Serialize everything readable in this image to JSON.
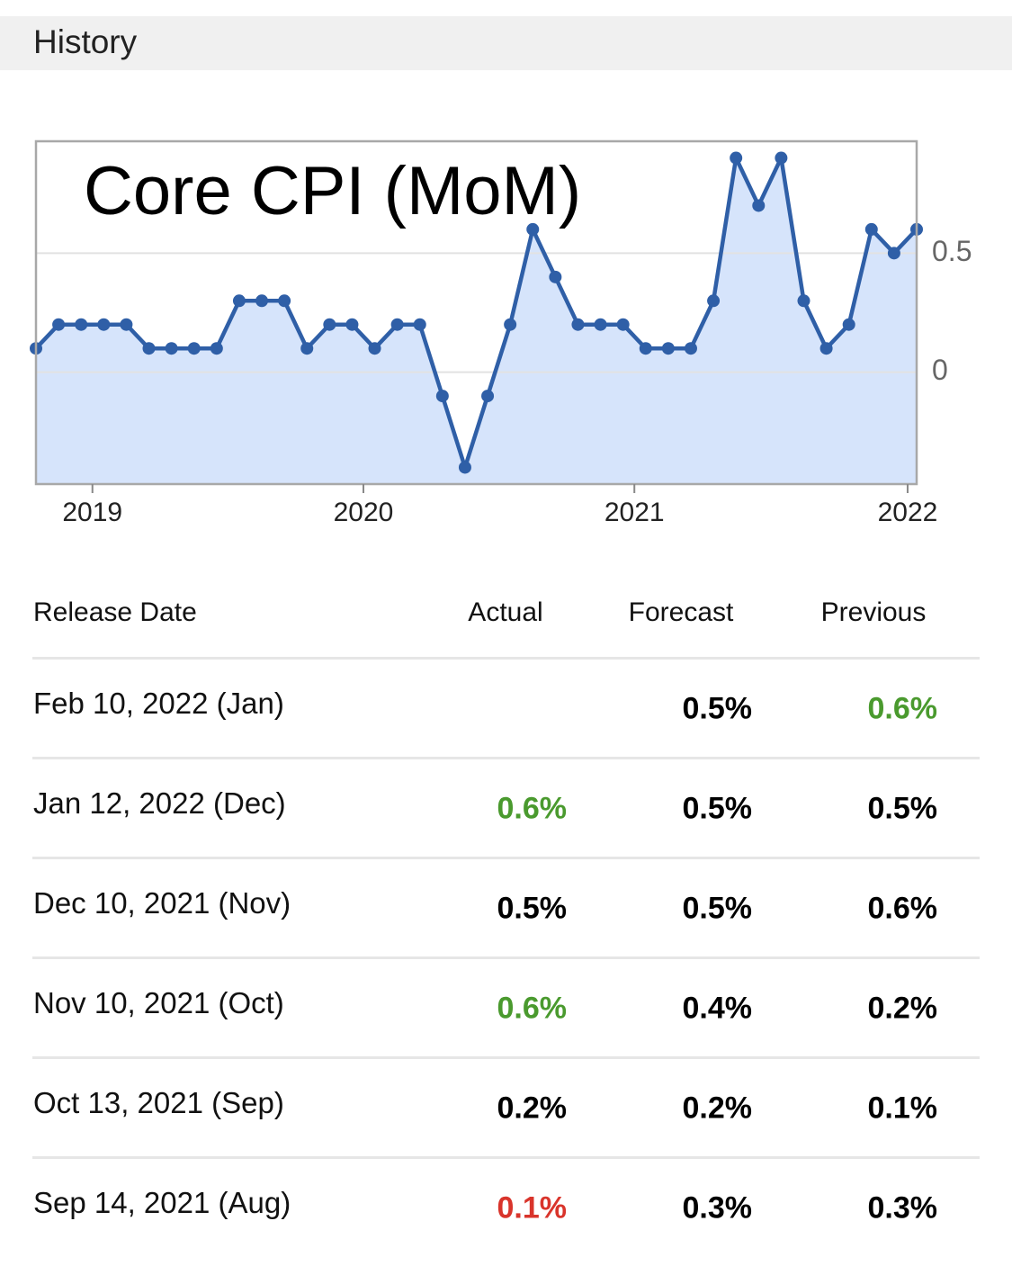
{
  "header": {
    "title": "History"
  },
  "chart_data": {
    "type": "line",
    "title": "Core CPI (MoM)",
    "values": [
      0.1,
      0.2,
      0.2,
      0.2,
      0.2,
      0.1,
      0.1,
      0.1,
      0.1,
      0.3,
      0.3,
      0.3,
      0.1,
      0.2,
      0.2,
      0.1,
      0.2,
      0.2,
      -0.1,
      -0.4,
      -0.1,
      0.2,
      0.6,
      0.4,
      0.2,
      0.2,
      0.2,
      0.1,
      0.1,
      0.1,
      0.3,
      0.9,
      0.7,
      0.9,
      0.3,
      0.1,
      0.2,
      0.6,
      0.5,
      0.6
    ],
    "color": "#2f5fa7",
    "fill": "#d6e4fb",
    "xlim": [
      0,
      39
    ],
    "xticks": [
      {
        "value": 2.5,
        "label": "2019"
      },
      {
        "value": 14.5,
        "label": "2020"
      },
      {
        "value": 26.5,
        "label": "2021"
      },
      {
        "value": 38.6,
        "label": "2022"
      }
    ],
    "ylim": [
      -0.47,
      0.97
    ],
    "yticks": [
      0,
      0.5
    ],
    "grid": true
  },
  "table": {
    "headers": [
      "Release Date",
      "Actual",
      "Forecast",
      "Previous"
    ],
    "rows": [
      [
        "Feb 10, 2022 (Jan)",
        null,
        "0.5%",
        "0.6%"
      ],
      [
        "Jan 12, 2022 (Dec)",
        "0.6%",
        "0.5%",
        "0.5%"
      ],
      [
        "Dec 10, 2021 (Nov)",
        "0.5%",
        "0.5%",
        "0.6%"
      ],
      [
        "Nov 10, 2021 (Oct)",
        "0.6%",
        "0.4%",
        "0.2%"
      ],
      [
        "Oct 13, 2021 (Sep)",
        "0.2%",
        "0.2%",
        "0.1%"
      ],
      [
        "Sep 14, 2021 (Aug)",
        "0.1%",
        "0.3%",
        "0.3%"
      ]
    ],
    "colors": [
      [
        null,
        null,
        "#000000",
        "#4a9a2e"
      ],
      [
        null,
        "#4a9a2e",
        "#000000",
        "#000000"
      ],
      [
        null,
        "#000000",
        "#000000",
        "#000000"
      ],
      [
        null,
        "#4a9a2e",
        "#000000",
        "#000000"
      ],
      [
        null,
        "#000000",
        "#000000",
        "#000000"
      ],
      [
        null,
        "#d9342b",
        "#000000",
        "#000000"
      ]
    ]
  }
}
